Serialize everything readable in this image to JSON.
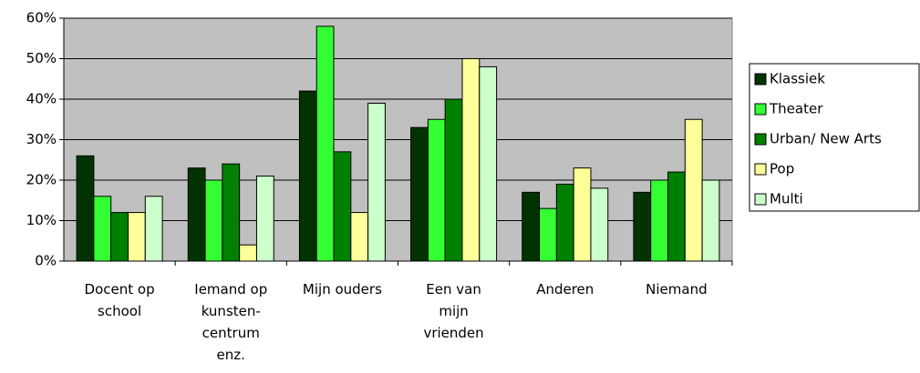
{
  "chart_data": {
    "type": "bar",
    "categories": [
      "Docent op\nschool",
      "Iemand op\nkunsten-\ncentrum\nenz.",
      "Mijn ouders",
      "Een van\nmijn\nvrienden",
      "Anderen",
      "Niemand"
    ],
    "series": [
      {
        "name": "Klassiek",
        "color": "#003300",
        "values": [
          26,
          23,
          42,
          33,
          17,
          17
        ]
      },
      {
        "name": "Theater",
        "color": "#33ff33",
        "values": [
          16,
          20,
          58,
          35,
          13,
          20
        ]
      },
      {
        "name": "Urban/ New Arts",
        "color": "#008000",
        "values": [
          12,
          24,
          27,
          40,
          19,
          22
        ]
      },
      {
        "name": "Pop",
        "color": "#ffff99",
        "values": [
          12,
          4,
          12,
          50,
          23,
          35
        ]
      },
      {
        "name": "Multi",
        "color": "#ccffcc",
        "values": [
          16,
          21,
          39,
          48,
          18,
          20
        ]
      }
    ],
    "ylim": [
      0,
      60
    ],
    "yticks": [
      {
        "value": 0,
        "label": "0%"
      },
      {
        "value": 10,
        "label": "10%"
      },
      {
        "value": 20,
        "label": "20%"
      },
      {
        "value": 30,
        "label": "30%"
      },
      {
        "value": 40,
        "label": "40%"
      },
      {
        "value": 50,
        "label": "50%"
      },
      {
        "value": 60,
        "label": "60%"
      }
    ],
    "grid": true,
    "legend": "right"
  }
}
